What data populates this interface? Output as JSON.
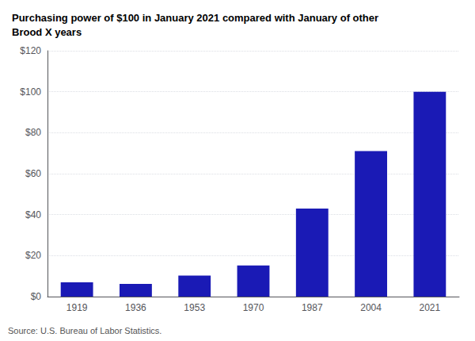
{
  "chart_data": {
    "type": "bar",
    "title": "Purchasing power of $100 in January 2021 compared with January of other\nBrood X years",
    "categories": [
      "1919",
      "1936",
      "1953",
      "1970",
      "1987",
      "2004",
      "2021"
    ],
    "values": [
      7.0,
      6.2,
      10.3,
      15.2,
      43.0,
      71.0,
      100.0
    ],
    "color": "#1a1ab5",
    "ylim": [
      0,
      120
    ],
    "yticks": [
      {
        "value": 0,
        "label": "$0"
      },
      {
        "value": 20,
        "label": "$20"
      },
      {
        "value": 40,
        "label": "$40"
      },
      {
        "value": 60,
        "label": "$60"
      },
      {
        "value": 80,
        "label": "$80"
      },
      {
        "value": 100,
        "label": "$100"
      },
      {
        "value": 120,
        "label": "$120"
      }
    ],
    "grid": true,
    "annotations": [
      "Source: U.S. Bureau of Labor Statistics."
    ]
  }
}
